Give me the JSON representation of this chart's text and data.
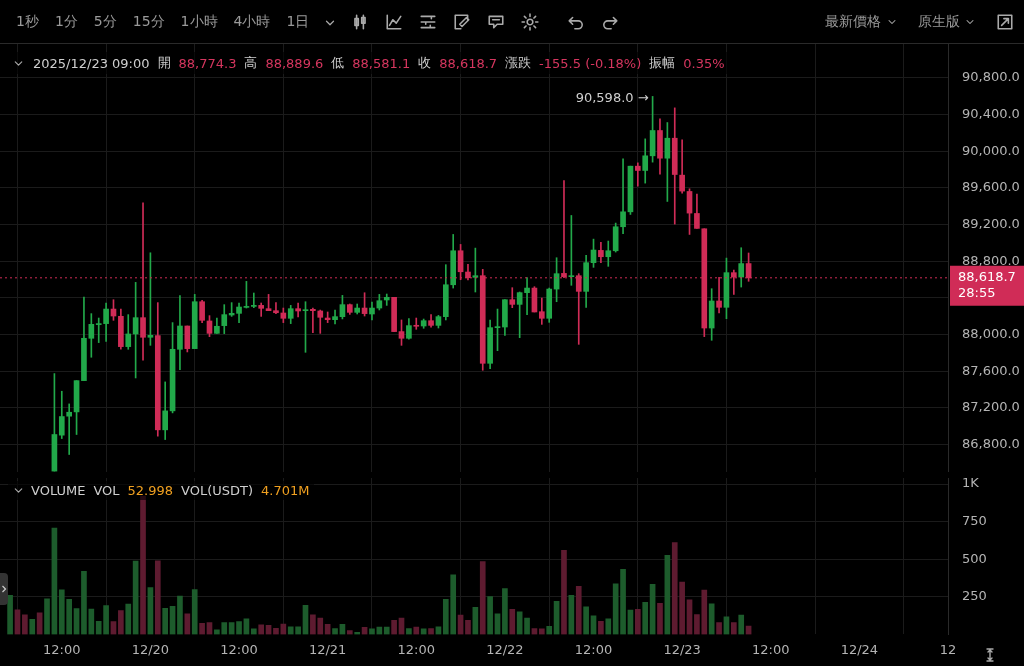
{
  "chart_data": [
    {
      "type": "other",
      "annotations": [
        "1秒",
        "1分",
        "5分",
        "15分",
        "1小時",
        "4小時",
        "1日",
        "最新價格",
        "原生版"
      ]
    },
    {
      "type": "candlestick",
      "annotations": [
        "2025/12/23 09:00",
        "開",
        "88,774.3",
        "高",
        "88,889.6",
        "低",
        "88,581.1",
        "收",
        "88,618.7",
        "漲跌",
        "-155.5 (-0.18%)",
        "振幅",
        "0.35%",
        {
          "text": "90,598.0 →",
          "x": "2025-12-22T20:00",
          "y": 90598
        }
      ],
      "x": [
        "2025-12-19T11:00",
        "2025-12-19T12:00",
        "2025-12-19T13:00",
        "2025-12-19T14:00",
        "2025-12-19T15:00",
        "2025-12-19T16:00",
        "2025-12-19T17:00",
        "2025-12-19T18:00",
        "2025-12-19T19:00",
        "2025-12-19T20:00",
        "2025-12-19T21:00",
        "2025-12-19T22:00",
        "2025-12-19T23:00",
        "2025-12-20T00:00",
        "2025-12-20T01:00",
        "2025-12-20T02:00",
        "2025-12-20T03:00",
        "2025-12-20T04:00",
        "2025-12-20T05:00",
        "2025-12-20T06:00",
        "2025-12-20T07:00",
        "2025-12-20T08:00",
        "2025-12-20T09:00",
        "2025-12-20T10:00",
        "2025-12-20T11:00",
        "2025-12-20T12:00",
        "2025-12-20T13:00",
        "2025-12-20T14:00",
        "2025-12-20T15:00",
        "2025-12-20T16:00",
        "2025-12-20T17:00",
        "2025-12-20T18:00",
        "2025-12-20T19:00",
        "2025-12-20T20:00",
        "2025-12-20T21:00",
        "2025-12-20T22:00",
        "2025-12-20T23:00",
        "2025-12-21T00:00",
        "2025-12-21T01:00",
        "2025-12-21T02:00",
        "2025-12-21T03:00",
        "2025-12-21T04:00",
        "2025-12-21T05:00",
        "2025-12-21T06:00",
        "2025-12-21T07:00",
        "2025-12-21T08:00",
        "2025-12-21T09:00",
        "2025-12-21T10:00",
        "2025-12-21T11:00",
        "2025-12-21T12:00",
        "2025-12-21T13:00",
        "2025-12-21T14:00",
        "2025-12-21T15:00",
        "2025-12-21T16:00",
        "2025-12-21T17:00",
        "2025-12-21T18:00",
        "2025-12-21T19:00",
        "2025-12-21T20:00",
        "2025-12-21T21:00",
        "2025-12-21T22:00",
        "2025-12-21T23:00",
        "2025-12-22T00:00",
        "2025-12-22T01:00",
        "2025-12-22T02:00",
        "2025-12-22T03:00",
        "2025-12-22T04:00",
        "2025-12-22T05:00",
        "2025-12-22T06:00",
        "2025-12-22T07:00",
        "2025-12-22T08:00",
        "2025-12-22T09:00",
        "2025-12-22T10:00",
        "2025-12-22T11:00",
        "2025-12-22T12:00",
        "2025-12-22T13:00",
        "2025-12-22T14:00",
        "2025-12-22T15:00",
        "2025-12-22T16:00",
        "2025-12-22T17:00",
        "2025-12-22T18:00",
        "2025-12-22T19:00",
        "2025-12-22T20:00",
        "2025-12-22T21:00",
        "2025-12-22T22:00",
        "2025-12-22T23:00",
        "2025-12-23T00:00",
        "2025-12-23T01:00",
        "2025-12-23T02:00",
        "2025-12-23T03:00",
        "2025-12-23T04:00",
        "2025-12-23T05:00",
        "2025-12-23T06:00",
        "2025-12-23T07:00",
        "2025-12-23T08:00",
        "2025-12-23T09:00"
      ],
      "ohlc": [
        [
          86510,
          87574,
          86510,
          86909
        ],
        [
          86902,
          87381,
          86865,
          87105
        ],
        [
          87109,
          87243,
          86691,
          87152
        ],
        [
          87156,
          87497,
          86909,
          87497
        ],
        [
          87497,
          88409,
          87497,
          87959
        ],
        [
          87959,
          88228,
          87752,
          88111
        ],
        [
          88108,
          88180,
          87912,
          88119
        ],
        [
          88119,
          88344,
          87926,
          88278
        ],
        [
          88278,
          88380,
          88155,
          88202
        ],
        [
          88199,
          88278,
          87839,
          87868
        ],
        [
          87868,
          88217,
          87839,
          88006
        ],
        [
          88006,
          88569,
          87526,
          88184
        ],
        [
          88184,
          89437,
          87719,
          87970
        ],
        [
          87970,
          88892,
          87882,
          87991
        ],
        [
          87988,
          88348,
          86891,
          86960
        ],
        [
          86960,
          87483,
          86854,
          87167
        ],
        [
          87167,
          88130,
          87145,
          87839
        ],
        [
          87839,
          88424,
          87617,
          88093
        ],
        [
          88093,
          88093,
          87810,
          87846
        ],
        [
          87846,
          88438,
          87846,
          88358
        ],
        [
          88358,
          88373,
          88130,
          88155
        ],
        [
          88148,
          88206,
          87977,
          88013
        ],
        [
          88013,
          88180,
          88013,
          88090
        ],
        [
          88097,
          88326,
          88010,
          88217
        ],
        [
          88213,
          88348,
          88198,
          88231
        ],
        [
          88231,
          88344,
          88130,
          88300
        ],
        [
          88296,
          88580,
          88289,
          88307
        ],
        [
          88307,
          88453,
          88293,
          88318
        ],
        [
          88318,
          88344,
          88198,
          88286
        ],
        [
          88282,
          88438,
          88260,
          88260
        ],
        [
          88260,
          88348,
          88228,
          88238
        ],
        [
          88235,
          88289,
          88130,
          88177
        ],
        [
          88177,
          88318,
          88119,
          88282
        ],
        [
          88282,
          88344,
          88191,
          88257
        ],
        [
          88260,
          88358,
          87806,
          88271
        ],
        [
          88275,
          88289,
          88020,
          88260
        ],
        [
          88257,
          88267,
          88013,
          88188
        ],
        [
          88180,
          88246,
          88130,
          88162
        ],
        [
          88162,
          88267,
          88115,
          88195
        ],
        [
          88195,
          88427,
          88170,
          88326
        ],
        [
          88326,
          88333,
          88220,
          88242
        ],
        [
          88242,
          88333,
          88224,
          88289
        ],
        [
          88289,
          88456,
          88202,
          88228
        ],
        [
          88224,
          88355,
          88159,
          88289
        ],
        [
          88289,
          88438,
          88268,
          88369
        ],
        [
          88377,
          88442,
          88318,
          88406
        ],
        [
          88406,
          88406,
          88032,
          88032
        ],
        [
          88032,
          88159,
          87882,
          87959
        ],
        [
          87959,
          88173,
          87948,
          88097
        ],
        [
          88100,
          88180,
          88057,
          88090
        ],
        [
          88093,
          88169,
          88068,
          88151
        ],
        [
          88151,
          88217,
          88079,
          88100
        ],
        [
          88100,
          88209,
          88071,
          88195
        ],
        [
          88195,
          88762,
          88159,
          88543
        ],
        [
          88543,
          89092,
          88507,
          88914
        ],
        [
          88914,
          88983,
          88598,
          88685
        ],
        [
          88682,
          88765,
          88595,
          88620
        ],
        [
          88624,
          88943,
          88464,
          88642
        ],
        [
          88642,
          88711,
          87610,
          87686
        ],
        [
          87686,
          88159,
          87628,
          88075
        ],
        [
          88075,
          88278,
          87824,
          88086
        ],
        [
          88082,
          88380,
          87991,
          88380
        ],
        [
          88380,
          88511,
          88293,
          88329
        ],
        [
          88329,
          88464,
          87966,
          88457
        ],
        [
          88457,
          88620,
          88217,
          88507
        ],
        [
          88507,
          88522,
          88246,
          88246
        ],
        [
          88249,
          88398,
          88111,
          88177
        ],
        [
          88177,
          88507,
          88133,
          88496
        ],
        [
          88496,
          88838,
          88358,
          88664
        ],
        [
          88667,
          89681,
          88620,
          88631
        ],
        [
          88631,
          89299,
          88537,
          88642
        ],
        [
          88642,
          88664,
          87893,
          88471
        ],
        [
          88471,
          88863,
          88297,
          88784
        ],
        [
          88784,
          89041,
          88733,
          88922
        ],
        [
          88918,
          89005,
          88784,
          88849
        ],
        [
          88849,
          89020,
          88744,
          88914
        ],
        [
          88914,
          89216,
          88900,
          89176
        ],
        [
          89176,
          89917,
          89100,
          89339
        ],
        [
          89339,
          89837,
          89310,
          89837
        ],
        [
          89837,
          89873,
          89619,
          89790
        ],
        [
          89790,
          90135,
          89652,
          89950
        ],
        [
          89950,
          90598,
          89881,
          90226
        ],
        [
          90226,
          90353,
          89750,
          89924
        ],
        [
          89924,
          90313,
          89452,
          90142
        ],
        [
          90142,
          90473,
          89205,
          89746
        ],
        [
          89739,
          90124,
          89543,
          89565
        ],
        [
          89561,
          89590,
          89092,
          89325
        ],
        [
          89321,
          89532,
          89158,
          89158
        ],
        [
          89154,
          89154,
          87977,
          88071
        ],
        [
          88071,
          88500,
          87937,
          88366
        ],
        [
          88366,
          88624,
          88235,
          88297
        ],
        [
          88297,
          88834,
          88173,
          88675
        ],
        [
          88675,
          88704,
          88438,
          88627
        ],
        [
          88627,
          88947,
          88518,
          88774
        ],
        [
          88774.3,
          88889.6,
          88581.1,
          88618.7
        ]
      ],
      "colors": [
        "#22a94a",
        "#22a94a",
        "#22a94a",
        "#22a94a",
        "#22a94a",
        "#22a94a",
        "#22a94a",
        "#22a94a",
        "#d02c57",
        "#d02c57",
        "#22a94a",
        "#22a94a",
        "#d02c57",
        "#22a94a",
        "#d02c57",
        "#22a94a",
        "#22a94a",
        "#22a94a",
        "#d02c57",
        "#22a94a",
        "#d02c57",
        "#d02c57",
        "#22a94a",
        "#22a94a",
        "#22a94a",
        "#22a94a",
        "#22a94a",
        "#22a94a",
        "#d02c57",
        "#d02c57",
        "#d02c57",
        "#d02c57",
        "#22a94a",
        "#d02c57",
        "#22a94a",
        "#d02c57",
        "#d02c57",
        "#d02c57",
        "#22a94a",
        "#22a94a",
        "#d02c57",
        "#22a94a",
        "#d02c57",
        "#22a94a",
        "#22a94a",
        "#22a94a",
        "#d02c57",
        "#d02c57",
        "#22a94a",
        "#d02c57",
        "#22a94a",
        "#d02c57",
        "#22a94a",
        "#22a94a",
        "#22a94a",
        "#d02c57",
        "#d02c57",
        "#22a94a",
        "#d02c57",
        "#22a94a",
        "#22a94a",
        "#22a94a",
        "#d02c57",
        "#22a94a",
        "#22a94a",
        "#d02c57",
        "#d02c57",
        "#22a94a",
        "#22a94a",
        "#d02c57",
        "#22a94a",
        "#d02c57",
        "#22a94a",
        "#22a94a",
        "#d02c57",
        "#22a94a",
        "#22a94a",
        "#22a94a",
        "#22a94a",
        "#d02c57",
        "#22a94a",
        "#22a94a",
        "#d02c57",
        "#22a94a",
        "#d02c57",
        "#d02c57",
        "#d02c57",
        "#d02c57",
        "#d02c57",
        "#22a94a",
        "#d02c57",
        "#22a94a",
        "#d02c57",
        "#22a94a",
        "#d02c57"
      ],
      "xlim": [
        "2025-12-19T03:38",
        "2025-12-24T12:00"
      ],
      "xticks": [
        {
          "value": "2025-12-19T12:00",
          "label": null
        },
        {
          "value": "2025-12-20T00:00",
          "label": null
        },
        {
          "value": "2025-12-20T12:00",
          "label": null
        },
        {
          "value": "2025-12-21T00:00",
          "label": null
        },
        {
          "value": "2025-12-21T12:00",
          "label": null
        },
        {
          "value": "2025-12-22T00:00",
          "label": null
        },
        {
          "value": "2025-12-22T12:00",
          "label": null
        },
        {
          "value": "2025-12-23T00:00",
          "label": null
        },
        {
          "value": "2025-12-23T12:00",
          "label": null
        },
        {
          "value": "2025-12-24T00:00",
          "label": null
        },
        {
          "value": "2025-12-24T12:00",
          "label": null
        }
      ],
      "ylim": [
        86500,
        91170
      ],
      "yticks": [
        {
          "value": 86800,
          "label": "86,800.0"
        },
        {
          "value": 87200,
          "label": "87,200.0"
        },
        {
          "value": 87600,
          "label": "87,600.0"
        },
        {
          "value": 88000,
          "label": "88,000.0"
        },
        {
          "value": 88400,
          "label": null
        },
        {
          "value": 88800,
          "label": "88,800.0"
        },
        {
          "value": 89200,
          "label": "89,200.0"
        },
        {
          "value": 89600,
          "label": "89,600.0"
        },
        {
          "value": 90000,
          "label": "90,000.0"
        },
        {
          "value": 90400,
          "label": "90,400.0"
        },
        {
          "value": 90800,
          "label": "90,800.0"
        }
      ],
      "grid": true,
      "tick_labels": "y",
      "ref_lines": [
        {
          "axis": "y",
          "value": 88618.7,
          "label": "88,618.7\n28:55",
          "color": "#d02c57",
          "line_style": "dotted"
        }
      ]
    },
    {
      "type": "bar",
      "title": "VOLUME",
      "annotations": [
        "VOL",
        "52.998",
        "VOL(USDT)",
        "4.701M"
      ],
      "x": [
        "2025-12-19T05:00",
        "2025-12-19T06:00",
        "2025-12-19T07:00",
        "2025-12-19T08:00",
        "2025-12-19T09:00",
        "2025-12-19T10:00",
        "2025-12-19T11:00",
        "2025-12-19T12:00",
        "2025-12-19T13:00",
        "2025-12-19T14:00",
        "2025-12-19T15:00",
        "2025-12-19T16:00",
        "2025-12-19T17:00",
        "2025-12-19T18:00",
        "2025-12-19T19:00",
        "2025-12-19T20:00",
        "2025-12-19T21:00",
        "2025-12-19T22:00",
        "2025-12-19T23:00",
        "2025-12-20T00:00",
        "2025-12-20T01:00",
        "2025-12-20T02:00",
        "2025-12-20T03:00",
        "2025-12-20T04:00",
        "2025-12-20T05:00",
        "2025-12-20T06:00",
        "2025-12-20T07:00",
        "2025-12-20T08:00",
        "2025-12-20T09:00",
        "2025-12-20T10:00",
        "2025-12-20T11:00",
        "2025-12-20T12:00",
        "2025-12-20T13:00",
        "2025-12-20T14:00",
        "2025-12-20T15:00",
        "2025-12-20T16:00",
        "2025-12-20T17:00",
        "2025-12-20T18:00",
        "2025-12-20T19:00",
        "2025-12-20T20:00",
        "2025-12-20T21:00",
        "2025-12-20T22:00",
        "2025-12-20T23:00",
        "2025-12-21T00:00",
        "2025-12-21T01:00",
        "2025-12-21T02:00",
        "2025-12-21T03:00",
        "2025-12-21T04:00",
        "2025-12-21T05:00",
        "2025-12-21T06:00",
        "2025-12-21T07:00",
        "2025-12-21T08:00",
        "2025-12-21T09:00",
        "2025-12-21T10:00",
        "2025-12-21T11:00",
        "2025-12-21T12:00",
        "2025-12-21T13:00",
        "2025-12-21T14:00",
        "2025-12-21T15:00",
        "2025-12-21T16:00",
        "2025-12-21T17:00",
        "2025-12-21T18:00",
        "2025-12-21T19:00",
        "2025-12-21T20:00",
        "2025-12-21T21:00",
        "2025-12-21T22:00",
        "2025-12-21T23:00",
        "2025-12-22T00:00",
        "2025-12-22T01:00",
        "2025-12-22T02:00",
        "2025-12-22T03:00",
        "2025-12-22T04:00",
        "2025-12-22T05:00",
        "2025-12-22T06:00",
        "2025-12-22T07:00",
        "2025-12-22T08:00",
        "2025-12-22T09:00",
        "2025-12-22T10:00",
        "2025-12-22T11:00",
        "2025-12-22T12:00",
        "2025-12-22T13:00",
        "2025-12-22T14:00",
        "2025-12-22T15:00",
        "2025-12-22T16:00",
        "2025-12-22T17:00",
        "2025-12-22T18:00",
        "2025-12-22T19:00",
        "2025-12-22T20:00",
        "2025-12-22T21:00",
        "2025-12-22T22:00",
        "2025-12-22T23:00",
        "2025-12-23T00:00",
        "2025-12-23T01:00",
        "2025-12-23T02:00",
        "2025-12-23T03:00",
        "2025-12-23T04:00",
        "2025-12-23T05:00",
        "2025-12-23T06:00",
        "2025-12-23T07:00",
        "2025-12-23T08:00",
        "2025-12-23T09:00"
      ],
      "values": [
        259,
        163,
        130,
        100,
        143,
        237,
        707,
        296,
        233,
        172,
        420,
        169,
        87,
        191,
        85,
        159,
        202,
        487,
        920,
        311,
        489,
        174,
        187,
        254,
        137,
        298,
        74,
        78,
        30,
        78,
        78,
        85,
        104,
        37,
        63,
        61,
        41,
        69,
        50,
        50,
        193,
        130,
        108,
        67,
        39,
        67,
        26,
        13,
        47,
        37,
        48,
        48,
        93,
        108,
        39,
        48,
        37,
        39,
        50,
        233,
        396,
        128,
        93,
        180,
        485,
        252,
        137,
        304,
        167,
        150,
        108,
        39,
        37,
        54,
        220,
        559,
        259,
        320,
        183,
        124,
        87,
        104,
        337,
        433,
        161,
        167,
        213,
        333,
        206,
        526,
        611,
        348,
        230,
        132,
        294,
        204,
        78,
        117,
        78,
        128,
        56
      ],
      "colors": [
        "#1d5c2c",
        "#5e1b30",
        "#5e1b30",
        "#1d5c2c",
        "#5e1b30",
        "#1d5c2c",
        "#1d5c2c",
        "#1d5c2c",
        "#1d5c2c",
        "#1d5c2c",
        "#1d5c2c",
        "#1d5c2c",
        "#1d5c2c",
        "#1d5c2c",
        "#5e1b30",
        "#5e1b30",
        "#1d5c2c",
        "#1d5c2c",
        "#5e1b30",
        "#1d5c2c",
        "#5e1b30",
        "#1d5c2c",
        "#1d5c2c",
        "#1d5c2c",
        "#5e1b30",
        "#1d5c2c",
        "#5e1b30",
        "#5e1b30",
        "#1d5c2c",
        "#1d5c2c",
        "#1d5c2c",
        "#1d5c2c",
        "#1d5c2c",
        "#1d5c2c",
        "#5e1b30",
        "#5e1b30",
        "#5e1b30",
        "#5e1b30",
        "#1d5c2c",
        "#1d5c2c",
        "#1d5c2c",
        "#5e1b30",
        "#5e1b30",
        "#5e1b30",
        "#1d5c2c",
        "#1d5c2c",
        "#5e1b30",
        "#1d5c2c",
        "#5e1b30",
        "#1d5c2c",
        "#1d5c2c",
        "#1d5c2c",
        "#5e1b30",
        "#5e1b30",
        "#1d5c2c",
        "#5e1b30",
        "#1d5c2c",
        "#5e1b30",
        "#1d5c2c",
        "#1d5c2c",
        "#1d5c2c",
        "#5e1b30",
        "#5e1b30",
        "#1d5c2c",
        "#5e1b30",
        "#1d5c2c",
        "#1d5c2c",
        "#1d5c2c",
        "#5e1b30",
        "#1d5c2c",
        "#1d5c2c",
        "#5e1b30",
        "#5e1b30",
        "#1d5c2c",
        "#1d5c2c",
        "#5e1b30",
        "#1d5c2c",
        "#5e1b30",
        "#1d5c2c",
        "#1d5c2c",
        "#5e1b30",
        "#1d5c2c",
        "#1d5c2c",
        "#1d5c2c",
        "#1d5c2c",
        "#5e1b30",
        "#1d5c2c",
        "#1d5c2c",
        "#5e1b30",
        "#1d5c2c",
        "#5e1b30",
        "#5e1b30",
        "#5e1b30",
        "#5e1b30",
        "#5e1b30",
        "#1d5c2c",
        "#5e1b30",
        "#1d5c2c",
        "#5e1b30",
        "#1d5c2c",
        "#5e1b30"
      ],
      "xlim": [
        "2025-12-19T03:38",
        "2025-12-24T12:00"
      ],
      "xticks": [
        {
          "value": "2025-12-19T12:00",
          "label": "12:00"
        },
        {
          "value": "2025-12-20T00:00",
          "label": "12/20"
        },
        {
          "value": "2025-12-20T12:00",
          "label": "12:00"
        },
        {
          "value": "2025-12-21T00:00",
          "label": "12/21"
        },
        {
          "value": "2025-12-21T12:00",
          "label": "12:00"
        },
        {
          "value": "2025-12-22T00:00",
          "label": "12/22"
        },
        {
          "value": "2025-12-22T12:00",
          "label": "12:00"
        },
        {
          "value": "2025-12-23T00:00",
          "label": "12/23"
        },
        {
          "value": "2025-12-23T12:00",
          "label": "12:00"
        },
        {
          "value": "2025-12-24T00:00",
          "label": "12/24"
        },
        {
          "value": "2025-12-24T12:00",
          "label": "12"
        }
      ],
      "ylim": [
        0,
        1040
      ],
      "yticks": [
        250,
        500,
        750,
        {
          "value": 1000,
          "label": "1K"
        }
      ],
      "grid": true
    }
  ]
}
